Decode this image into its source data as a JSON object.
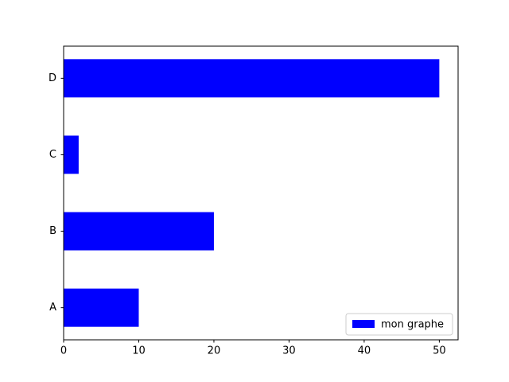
{
  "chart_data": {
    "type": "barh",
    "categories": [
      "A",
      "B",
      "C",
      "D"
    ],
    "series": [
      {
        "name": "mon graphe",
        "color": "#0000ff",
        "values": [
          10,
          20,
          2,
          50
        ]
      }
    ],
    "xlim": [
      0,
      52.5
    ],
    "xticks": [
      0,
      10,
      20,
      30,
      40,
      50
    ],
    "grid": false,
    "legend": "lower right"
  }
}
